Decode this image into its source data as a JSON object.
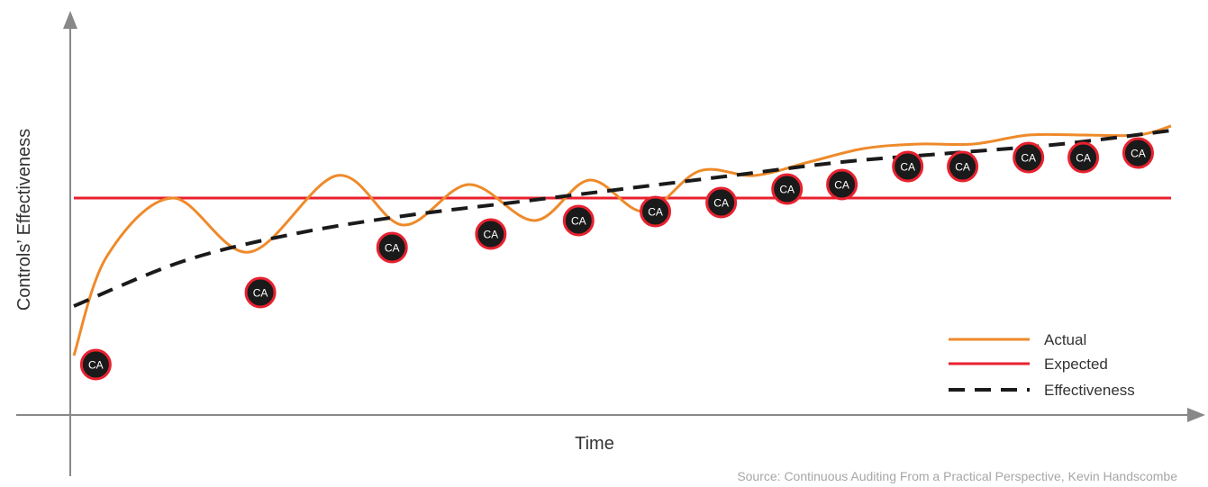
{
  "chart_data": {
    "type": "line",
    "title": "",
    "xlabel": "Time",
    "ylabel": "Controls’ Effectiveness",
    "xlim": [
      0,
      100
    ],
    "ylim": [
      0,
      100
    ],
    "grid": false,
    "legend_position": "bottom-right",
    "series": [
      {
        "name": "Actual",
        "color": "#ee8a2a",
        "style": "solid",
        "x": [
          0,
          3,
          9,
          16,
          24,
          30,
          36,
          42,
          47,
          52,
          57,
          62,
          67,
          72,
          77,
          82,
          87,
          92,
          97,
          100
        ],
        "y": [
          25,
          47,
          60,
          48,
          65,
          54,
          63,
          55,
          64,
          57,
          66,
          65,
          68,
          71,
          72,
          72,
          74,
          74,
          74,
          76
        ]
      },
      {
        "name": "Expected",
        "color": "#e8212f",
        "style": "solid",
        "x": [
          0,
          100
        ],
        "y": [
          60,
          60
        ]
      },
      {
        "name": "Effectiveness",
        "color": "#1a1a1a",
        "style": "dashed",
        "x": [
          0,
          10,
          20,
          30,
          40,
          50,
          60,
          70,
          80,
          90,
          100
        ],
        "y": [
          36,
          46,
          52,
          56,
          59,
          62,
          65,
          68,
          70,
          72,
          75
        ]
      }
    ],
    "markers": {
      "label": "CA",
      "fill": "#1a1a1a",
      "stroke": "#e8212f",
      "x": [
        2,
        17,
        29,
        38,
        46,
        53,
        59,
        65,
        70,
        76,
        81,
        87,
        92,
        97
      ],
      "y": [
        23,
        39,
        49,
        52,
        55,
        57,
        59,
        62,
        63,
        67,
        67,
        69,
        69,
        70
      ]
    }
  },
  "source": "Source:  Continuous Auditing From a Practical Perspective, Kevin Handscombe"
}
